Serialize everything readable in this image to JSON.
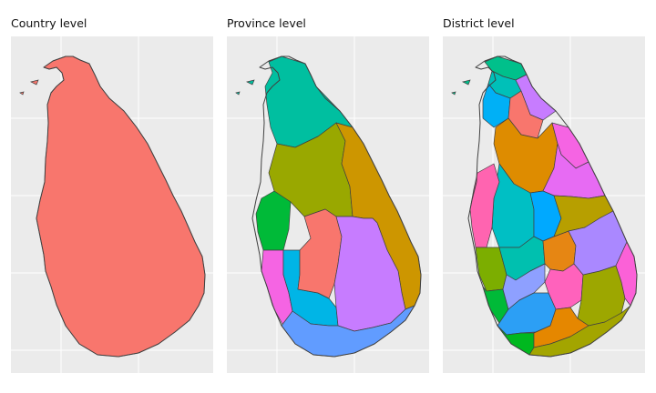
{
  "panels": [
    {
      "title": "Country level"
    },
    {
      "title": "Province level"
    },
    {
      "title": "District level"
    }
  ],
  "colors": {
    "panel_background": "#ebebeb",
    "grid": "#ffffff",
    "outline": "#404040",
    "country_fill": "#f8766d",
    "province_fills": [
      "#00bfa0",
      "#99a800",
      "#cd9600",
      "#00ba38",
      "#f564e3",
      "#00b5e6",
      "#f8766d",
      "#c77cff",
      "#619cff"
    ],
    "district_fills": [
      "#00c08b",
      "#00c0b8",
      "#c77cff",
      "#00b0f6",
      "#f8766d",
      "#de8c00",
      "#f564e3",
      "#e76bf3",
      "#00bfc4",
      "#00a9ff",
      "#ff64b0",
      "#7cae00",
      "#00c0af",
      "#e68613",
      "#00ba38",
      "#8ea0ff",
      "#ff62bc",
      "#9da700",
      "#2c9ff5",
      "#00b81f",
      "#e58700",
      "#a3a500",
      "#b79f00",
      "#aa88ff",
      "#fb61d7"
    ]
  }
}
